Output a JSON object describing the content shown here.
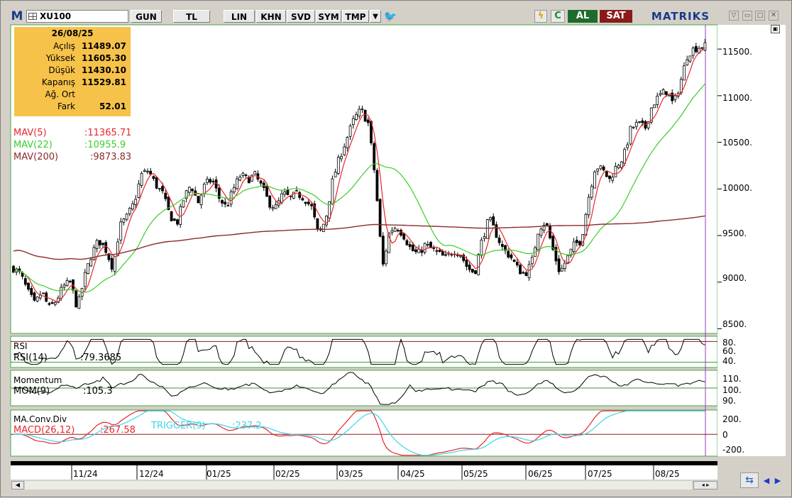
{
  "toolbar": {
    "logo": "M",
    "symbol": "XU100",
    "buttons": [
      "GUN",
      "TL",
      "LIN",
      "KHN",
      "SVD",
      "SYM",
      "TMP"
    ],
    "buy_label": "AL",
    "sell_label": "SAT",
    "brand": "MATRIKS",
    "colors": {
      "buy": "#1e6b2e",
      "sell": "#8b1a1a",
      "brand": "#1a3a8a"
    }
  },
  "info": {
    "date": "26/08/25",
    "rows": [
      {
        "label": "Açılış",
        "value": "11489.07"
      },
      {
        "label": "Yüksek",
        "value": "11605.30"
      },
      {
        "label": "Düşük",
        "value": "11430.10"
      },
      {
        "label": "Kapanış",
        "value": "11529.81"
      },
      {
        "label": "Ağ. Ort",
        "value": ""
      },
      {
        "label": "Fark",
        "value": "52.01"
      }
    ]
  },
  "indicators": {
    "mav5": {
      "label": "MAV(5)",
      "value": ":11365.71",
      "color": "#e8262a"
    },
    "mav22": {
      "label": "MAV(22)",
      "value": ":10955.9",
      "color": "#3ccc2c"
    },
    "mav200": {
      "label": "MAV(200)",
      "value": ":9873.83",
      "color": "#8b2a2a"
    },
    "rsi_title": "RSI",
    "rsi_label": "RSI(14)",
    "rsi_value": ":79.3685",
    "mom_title": "Momentum",
    "mom_label": "MOM(9)",
    "mom_value": ":105.3",
    "macd_title": "MA.Conv.Div",
    "macd_label": "MACD(26,12)",
    "macd_value": ":267.58",
    "trigger_label": "TRIGGER(9)",
    "trigger_value": ":237.2"
  },
  "chart_data": {
    "type": "candlestick",
    "symbol": "XU100",
    "x_ticks": [
      "11/24",
      "12/24",
      "01/25",
      "02/25",
      "03/25",
      "04/25",
      "05/25",
      "06/25",
      "07/25",
      "08/25"
    ],
    "price_ticks": [
      "11500.",
      "11000.",
      "10500.",
      "10000.",
      "9500.",
      "9000.",
      "8500."
    ],
    "price_ylim": [
      8450,
      11760
    ],
    "rsi_ticks": [
      "80.",
      "60.",
      "40."
    ],
    "rsi_levels": [
      80,
      40
    ],
    "mom_ticks": [
      "110.",
      "100.",
      "90."
    ],
    "mom_level": 100,
    "macd_ticks": [
      "200.",
      "0",
      "-200."
    ],
    "macd_level": 0,
    "close_path": [
      [
        0,
        9150
      ],
      [
        10,
        9080
      ],
      [
        20,
        8900
      ],
      [
        30,
        8760
      ],
      [
        40,
        8900
      ],
      [
        50,
        8720
      ],
      [
        60,
        8800
      ],
      [
        70,
        8950
      ],
      [
        80,
        9000
      ],
      [
        90,
        8720
      ],
      [
        100,
        9050
      ],
      [
        110,
        9300
      ],
      [
        120,
        9450
      ],
      [
        130,
        9350
      ],
      [
        140,
        9150
      ],
      [
        150,
        9600
      ],
      [
        160,
        9700
      ],
      [
        170,
        9850
      ],
      [
        180,
        10150
      ],
      [
        190,
        10200
      ],
      [
        200,
        10050
      ],
      [
        210,
        9950
      ],
      [
        220,
        9720
      ],
      [
        230,
        9620
      ],
      [
        240,
        9900
      ],
      [
        250,
        10050
      ],
      [
        260,
        9850
      ],
      [
        270,
        10050
      ],
      [
        280,
        10100
      ],
      [
        290,
        9900
      ],
      [
        300,
        9800
      ],
      [
        310,
        10000
      ],
      [
        320,
        10150
      ],
      [
        330,
        10100
      ],
      [
        340,
        10150
      ],
      [
        350,
        10020
      ],
      [
        360,
        9850
      ],
      [
        370,
        9800
      ],
      [
        380,
        9950
      ],
      [
        390,
        9900
      ],
      [
        400,
        9950
      ],
      [
        410,
        9900
      ],
      [
        420,
        9800
      ],
      [
        430,
        9500
      ],
      [
        440,
        9680
      ],
      [
        450,
        10100
      ],
      [
        460,
        10350
      ],
      [
        470,
        10550
      ],
      [
        480,
        10750
      ],
      [
        490,
        10850
      ],
      [
        500,
        10700
      ],
      [
        510,
        10100
      ],
      [
        520,
        9150
      ],
      [
        530,
        9550
      ],
      [
        540,
        9600
      ],
      [
        550,
        9500
      ],
      [
        560,
        9350
      ],
      [
        570,
        9300
      ],
      [
        580,
        9400
      ],
      [
        590,
        9350
      ],
      [
        600,
        9300
      ],
      [
        610,
        9250
      ],
      [
        620,
        9350
      ],
      [
        630,
        9300
      ],
      [
        640,
        9150
      ],
      [
        650,
        9100
      ],
      [
        660,
        9450
      ],
      [
        670,
        9680
      ],
      [
        680,
        9520
      ],
      [
        690,
        9350
      ],
      [
        700,
        9280
      ],
      [
        710,
        9150
      ],
      [
        720,
        9080
      ],
      [
        730,
        9200
      ],
      [
        740,
        9580
      ],
      [
        750,
        9650
      ],
      [
        760,
        9350
      ],
      [
        770,
        9100
      ],
      [
        780,
        9250
      ],
      [
        790,
        9400
      ],
      [
        800,
        9450
      ],
      [
        810,
        9900
      ],
      [
        820,
        10250
      ],
      [
        830,
        10200
      ],
      [
        840,
        10100
      ],
      [
        850,
        10250
      ],
      [
        860,
        10350
      ],
      [
        870,
        10650
      ],
      [
        880,
        10700
      ],
      [
        890,
        10650
      ],
      [
        900,
        10900
      ],
      [
        910,
        11000
      ],
      [
        920,
        11050
      ],
      [
        930,
        10900
      ],
      [
        940,
        11150
      ],
      [
        950,
        11450
      ],
      [
        960,
        11510
      ],
      [
        970,
        11530
      ]
    ]
  }
}
